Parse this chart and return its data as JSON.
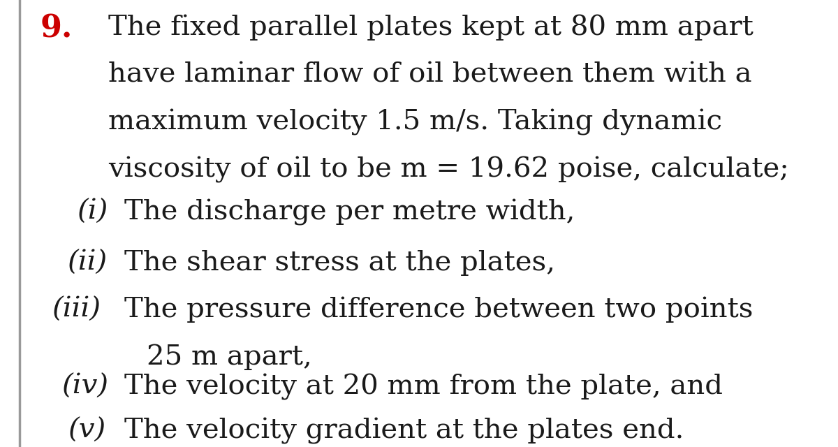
{
  "background_color": "#ffffff",
  "left_border_color": "#999999",
  "number_color": "#cc0000",
  "number_text": "9.",
  "number_fontsize": 32,
  "main_text_color": "#1a1a1a",
  "main_paragraph": [
    "The fixed parallel plates kept at 80 mm apart",
    "have laminar flow of oil between them with a",
    "maximum velocity 1.5 m/s. Taking dynamic",
    "viscosity of oil to be m = 19.62 poise, calculate;"
  ],
  "items": [
    {
      "label": "(i)",
      "text": "The discharge per metre width,"
    },
    {
      "label": "(ii)",
      "text": "The shear stress at the plates,"
    },
    {
      "label": "(iii)",
      "text": "The pressure difference between two points"
    },
    {
      "label": "",
      "text": "25 m apart,"
    },
    {
      "label": "(iv)",
      "text": "The velocity at 20 mm from the plate, and"
    },
    {
      "label": "(v)",
      "text": "The velocity gradient at the plates end."
    }
  ],
  "fontsize": 29,
  "font_family": "DejaVu Serif"
}
